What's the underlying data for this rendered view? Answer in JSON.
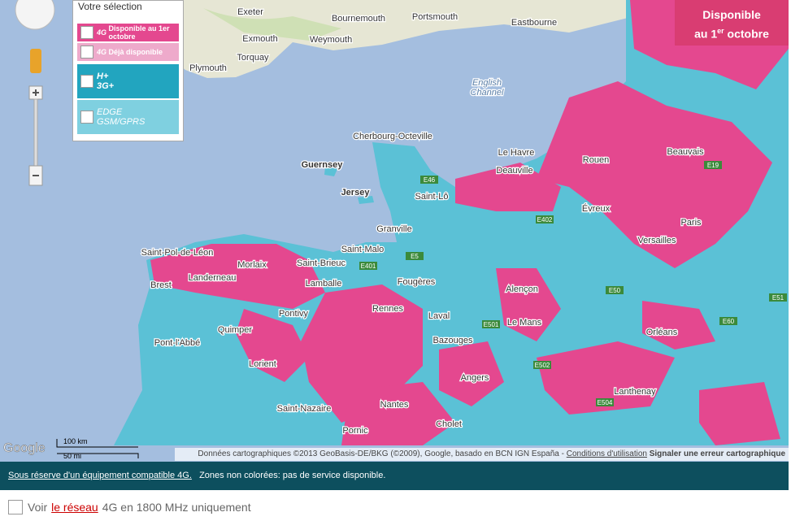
{
  "map": {
    "labels": [
      "Exeter",
      "Bournemouth",
      "Portsmouth",
      "Eastbourne",
      "Exmouth",
      "Weymouth",
      "Torquay",
      "Plymouth",
      "English",
      "Channel",
      "Cherbourg-Octeville",
      "Le Havre",
      "Guernsey",
      "Jersey",
      "Deauville",
      "Rouen",
      "Beauvais",
      "Saint-Lô",
      "Évreux",
      "Granville",
      "Paris",
      "Versailles",
      "Saint-Malo",
      "Saint-Pol-de-Léon",
      "Morlaix",
      "Brest",
      "Landerneau",
      "Saint-Brieuc",
      "Lamballe",
      "Fougères",
      "Alençon",
      "Rennes",
      "Pontivy",
      "Laval",
      "Le Mans",
      "Quimper",
      "Pont-l'Abbé",
      "Lorient",
      "Bazouges",
      "Orléans",
      "Angers",
      "Saint-Nazaire",
      "Nantes",
      "Cholet",
      "Lanthenay",
      "Pornic"
    ],
    "road_labels": [
      "E46",
      "E401",
      "E402",
      "E50",
      "E5",
      "E60",
      "E501",
      "E502",
      "E504",
      "E19",
      "E51"
    ],
    "scale_km": "100 km",
    "scale_mi": "50 mi",
    "logo": "Google",
    "attribution": "Données cartographiques ©2013 GeoBasis-DE/BKG (©2009), Google, basado en BCN IGN España -",
    "terms": "Conditions d'utilisation",
    "report": "Signaler une erreur cartographique"
  },
  "legend": {
    "title": "Votre sélection",
    "items": [
      {
        "badge": "4G",
        "label": "Disponible au 1er octobre"
      },
      {
        "badge": "4G",
        "label": "Déjà disponible"
      },
      {
        "line1": "H+",
        "line2": "3G+"
      },
      {
        "line1": "EDGE",
        "line2": "GSM/GPRS"
      }
    ]
  },
  "banner": {
    "line1": "Disponible",
    "line2": "au 1",
    "sup": "er",
    "line3": "octobre"
  },
  "notice": {
    "link": "Sous réserve d'un équipement compatible 4G.",
    "text": "Zones non colorées: pas de service disponible."
  },
  "option": {
    "prefix": "Voir",
    "link": "le réseau",
    "suffix": "4G en 1800 MHz uniquement"
  }
}
